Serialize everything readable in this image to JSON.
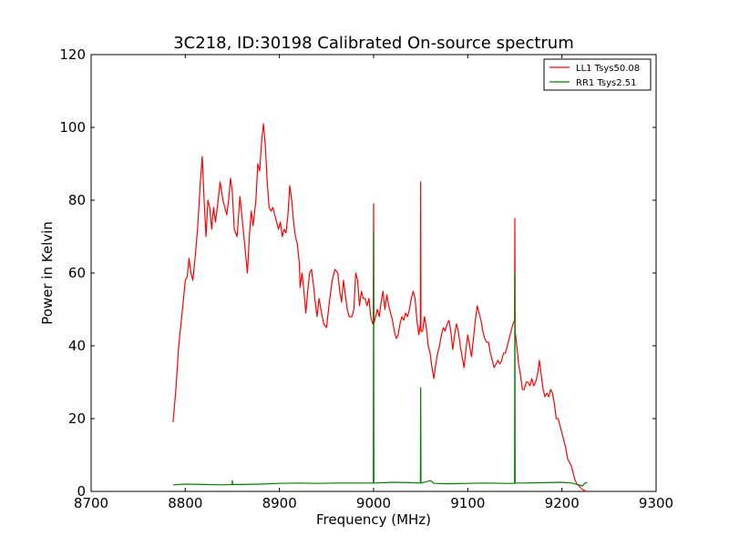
{
  "chart_data": {
    "type": "line",
    "title": "3C218, ID:30198 Calibrated On-source spectrum",
    "xlabel": "Frequency (MHz)",
    "ylabel": "Power in Kelvin",
    "xlim": [
      8700,
      9300
    ],
    "ylim": [
      0,
      120
    ],
    "xticks": [
      8700,
      8800,
      8900,
      9000,
      9100,
      9200,
      9300
    ],
    "yticks": [
      0,
      20,
      40,
      60,
      80,
      100,
      120
    ],
    "grid": false,
    "legend_position": "top-right",
    "series": [
      {
        "name": "LL1 Tsys50.08",
        "color": "#ff0000",
        "points": [
          [
            8787,
            19
          ],
          [
            8790,
            28
          ],
          [
            8793,
            40
          ],
          [
            8797,
            50
          ],
          [
            8800,
            58
          ],
          [
            8802,
            59
          ],
          [
            8804,
            64
          ],
          [
            8806,
            60
          ],
          [
            8808,
            58
          ],
          [
            8810,
            63
          ],
          [
            8813,
            72
          ],
          [
            8816,
            85
          ],
          [
            8818,
            92
          ],
          [
            8820,
            80
          ],
          [
            8822,
            70
          ],
          [
            8824,
            80
          ],
          [
            8826,
            78
          ],
          [
            8828,
            72
          ],
          [
            8830,
            78
          ],
          [
            8832,
            74
          ],
          [
            8834,
            78
          ],
          [
            8837,
            85
          ],
          [
            8840,
            80
          ],
          [
            8842,
            78
          ],
          [
            8844,
            76
          ],
          [
            8846,
            80
          ],
          [
            8848,
            86
          ],
          [
            8850,
            82
          ],
          [
            8852,
            72
          ],
          [
            8855,
            70
          ],
          [
            8858,
            81
          ],
          [
            8860,
            76
          ],
          [
            8863,
            68
          ],
          [
            8866,
            60
          ],
          [
            8868,
            70
          ],
          [
            8870,
            77
          ],
          [
            8872,
            73
          ],
          [
            8875,
            80
          ],
          [
            8877,
            90
          ],
          [
            8879,
            88
          ],
          [
            8881,
            96
          ],
          [
            8883,
            101
          ],
          [
            8885,
            95
          ],
          [
            8887,
            85
          ],
          [
            8889,
            78
          ],
          [
            8891,
            77
          ],
          [
            8893,
            78
          ],
          [
            8895,
            76
          ],
          [
            8897,
            74
          ],
          [
            8899,
            72
          ],
          [
            8901,
            74
          ],
          [
            8903,
            70
          ],
          [
            8905,
            72
          ],
          [
            8907,
            71
          ],
          [
            8909,
            76
          ],
          [
            8911,
            84
          ],
          [
            8913,
            80
          ],
          [
            8915,
            74
          ],
          [
            8917,
            70
          ],
          [
            8919,
            68
          ],
          [
            8921,
            63
          ],
          [
            8922,
            56
          ],
          [
            8924,
            60
          ],
          [
            8926,
            55
          ],
          [
            8928,
            49
          ],
          [
            8930,
            55
          ],
          [
            8932,
            60
          ],
          [
            8934,
            61
          ],
          [
            8936,
            57
          ],
          [
            8938,
            52
          ],
          [
            8940,
            48
          ],
          [
            8942,
            53
          ],
          [
            8944,
            50
          ],
          [
            8947,
            46
          ],
          [
            8950,
            45
          ],
          [
            8953,
            52
          ],
          [
            8956,
            58
          ],
          [
            8959,
            61
          ],
          [
            8962,
            60
          ],
          [
            8964,
            55
          ],
          [
            8966,
            52
          ],
          [
            8968,
            58
          ],
          [
            8970,
            54
          ],
          [
            8972,
            50
          ],
          [
            8974,
            48
          ],
          [
            8977,
            48
          ],
          [
            8979,
            50
          ],
          [
            8981,
            60
          ],
          [
            8983,
            58
          ],
          [
            8985,
            51
          ],
          [
            8987,
            55
          ],
          [
            8989,
            53
          ],
          [
            8991,
            53
          ],
          [
            8993,
            51
          ],
          [
            8995,
            53
          ],
          [
            8997,
            48
          ],
          [
            8999,
            46
          ],
          [
            8999.7,
            46
          ],
          [
            9000,
            79
          ],
          [
            9000.3,
            46
          ],
          [
            9002,
            48
          ],
          [
            9004,
            50
          ],
          [
            9006,
            48
          ],
          [
            9008,
            52
          ],
          [
            9010,
            55
          ],
          [
            9012,
            50
          ],
          [
            9014,
            54
          ],
          [
            9016,
            51
          ],
          [
            9018,
            49
          ],
          [
            9020,
            47
          ],
          [
            9022,
            44
          ],
          [
            9024,
            42
          ],
          [
            9026,
            43
          ],
          [
            9028,
            46
          ],
          [
            9030,
            48
          ],
          [
            9032,
            47
          ],
          [
            9034,
            49
          ],
          [
            9036,
            48
          ],
          [
            9038,
            50
          ],
          [
            9040,
            53
          ],
          [
            9042,
            55
          ],
          [
            9044,
            53
          ],
          [
            9046,
            47
          ],
          [
            9048,
            43
          ],
          [
            9049.7,
            46
          ],
          [
            9050,
            85
          ],
          [
            9050.3,
            44
          ],
          [
            9052,
            44
          ],
          [
            9054,
            48
          ],
          [
            9056,
            45
          ],
          [
            9058,
            40
          ],
          [
            9060,
            38
          ],
          [
            9062,
            34
          ],
          [
            9064,
            31
          ],
          [
            9066,
            35
          ],
          [
            9068,
            38
          ],
          [
            9070,
            40
          ],
          [
            9072,
            43
          ],
          [
            9074,
            45
          ],
          [
            9076,
            44
          ],
          [
            9078,
            46
          ],
          [
            9080,
            47
          ],
          [
            9082,
            44
          ],
          [
            9084,
            39
          ],
          [
            9086,
            43
          ],
          [
            9088,
            46
          ],
          [
            9090,
            44
          ],
          [
            9092,
            40
          ],
          [
            9094,
            37
          ],
          [
            9096,
            34
          ],
          [
            9098,
            39
          ],
          [
            9100,
            43
          ],
          [
            9102,
            40
          ],
          [
            9104,
            37
          ],
          [
            9106,
            42
          ],
          [
            9108,
            47
          ],
          [
            9110,
            51
          ],
          [
            9112,
            49
          ],
          [
            9114,
            47
          ],
          [
            9116,
            44
          ],
          [
            9118,
            42
          ],
          [
            9120,
            41
          ],
          [
            9122,
            41
          ],
          [
            9124,
            38
          ],
          [
            9126,
            36
          ],
          [
            9128,
            34
          ],
          [
            9130,
            35
          ],
          [
            9132,
            36
          ],
          [
            9134,
            35
          ],
          [
            9136,
            36
          ],
          [
            9138,
            38
          ],
          [
            9140,
            38
          ],
          [
            9142,
            40
          ],
          [
            9144,
            42
          ],
          [
            9146,
            44
          ],
          [
            9148,
            46
          ],
          [
            9149.7,
            47
          ],
          [
            9150,
            75
          ],
          [
            9150.3,
            44
          ],
          [
            9152,
            40
          ],
          [
            9154,
            35
          ],
          [
            9156,
            32
          ],
          [
            9158,
            28
          ],
          [
            9160,
            28
          ],
          [
            9162,
            30
          ],
          [
            9164,
            30
          ],
          [
            9166,
            29
          ],
          [
            9168,
            31
          ],
          [
            9170,
            29
          ],
          [
            9172,
            30
          ],
          [
            9174,
            32
          ],
          [
            9176,
            36
          ],
          [
            9178,
            32
          ],
          [
            9180,
            28
          ],
          [
            9182,
            26
          ],
          [
            9184,
            27
          ],
          [
            9186,
            26
          ],
          [
            9188,
            28
          ],
          [
            9190,
            27
          ],
          [
            9192,
            24
          ],
          [
            9194,
            20
          ],
          [
            9196,
            20
          ],
          [
            9198,
            18
          ],
          [
            9200,
            16
          ],
          [
            9202,
            14
          ],
          [
            9204,
            12
          ],
          [
            9206,
            9
          ],
          [
            9208,
            8
          ],
          [
            9210,
            7
          ],
          [
            9212,
            5
          ],
          [
            9214,
            3
          ],
          [
            9216,
            2
          ],
          [
            9218,
            1.5
          ],
          [
            9220,
            1
          ],
          [
            9222,
            0.5
          ],
          [
            9226,
            0
          ]
        ]
      },
      {
        "name": "RR1 Tsys2.51",
        "color": "#008000",
        "points": [
          [
            8787,
            1.8
          ],
          [
            8800,
            2.0
          ],
          [
            8820,
            1.9
          ],
          [
            8840,
            1.8
          ],
          [
            8849.7,
            1.9
          ],
          [
            8850,
            3.0
          ],
          [
            8850.3,
            1.9
          ],
          [
            8860,
            1.9
          ],
          [
            8880,
            2.0
          ],
          [
            8900,
            2.2
          ],
          [
            8920,
            2.3
          ],
          [
            8940,
            2.2
          ],
          [
            8960,
            2.3
          ],
          [
            8980,
            2.3
          ],
          [
            8999.7,
            2.3
          ],
          [
            9000,
            71
          ],
          [
            9000.3,
            2.3
          ],
          [
            9020,
            2.5
          ],
          [
            9040,
            2.4
          ],
          [
            9049.7,
            2.3
          ],
          [
            9050,
            28.5
          ],
          [
            9050.3,
            2.3
          ],
          [
            9058,
            2.8
          ],
          [
            9060,
            3.0
          ],
          [
            9062,
            2.7
          ],
          [
            9064,
            2.2
          ],
          [
            9080,
            2.1
          ],
          [
            9100,
            2.2
          ],
          [
            9120,
            2.3
          ],
          [
            9140,
            2.2
          ],
          [
            9149.7,
            2.2
          ],
          [
            9150,
            60
          ],
          [
            9150.3,
            2.3
          ],
          [
            9160,
            2.3
          ],
          [
            9180,
            2.4
          ],
          [
            9200,
            2.5
          ],
          [
            9210,
            2.3
          ],
          [
            9218,
            1.8
          ],
          [
            9222,
            1.5
          ],
          [
            9224,
            2.2
          ],
          [
            9227,
            2.5
          ]
        ]
      }
    ]
  }
}
